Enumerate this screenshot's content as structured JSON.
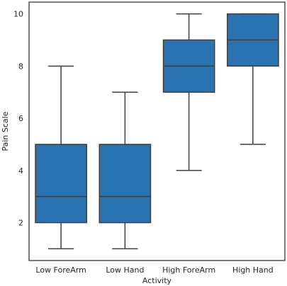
{
  "chart_data": {
    "type": "box",
    "title": "",
    "xlabel": "Activity",
    "ylabel": "Pain Scale",
    "categories": [
      "Low ForeArm",
      "Low Hand",
      "High ForeArm",
      "High Hand"
    ],
    "boxes": [
      {
        "min": 1,
        "q1": 2,
        "median": 3,
        "q3": 5,
        "max": 8
      },
      {
        "min": 1,
        "q1": 2,
        "median": 3,
        "q3": 5,
        "max": 7
      },
      {
        "min": 4,
        "q1": 7,
        "median": 8,
        "q3": 9,
        "max": 10
      },
      {
        "min": 5,
        "q1": 8,
        "median": 9,
        "q3": 10,
        "max": 10
      }
    ],
    "yticks": [
      2,
      4,
      6,
      8,
      10
    ],
    "ylim": [
      0.55,
      10.45
    ],
    "grid": false,
    "colors": {
      "box_fill": "#2b73b0",
      "line": "#3f3f3f",
      "frame": "#262626"
    }
  }
}
